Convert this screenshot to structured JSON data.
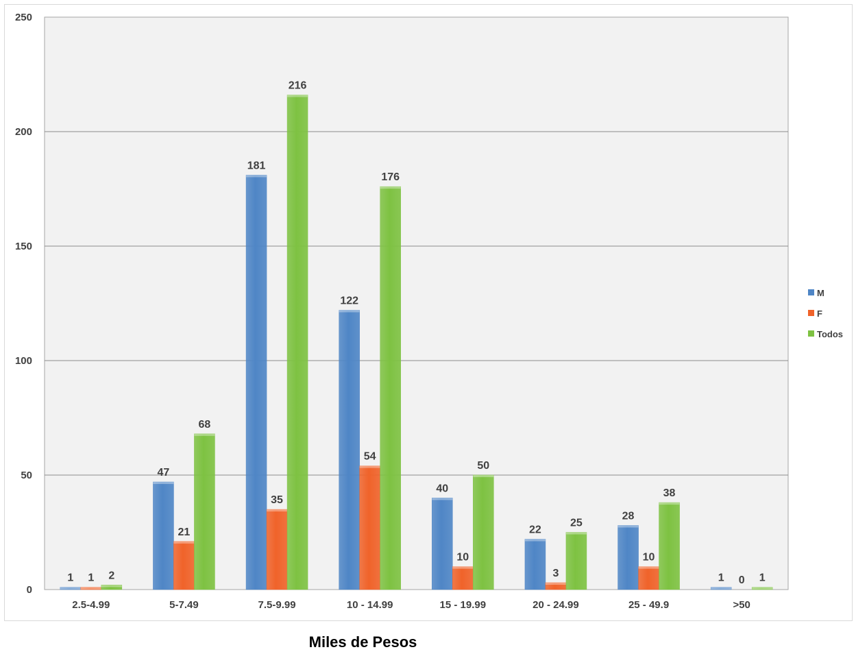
{
  "chart_data": {
    "type": "bar",
    "xlabel": "Miles de Pesos",
    "ylabel": "",
    "ylim": [
      0,
      250
    ],
    "yticks": [
      0,
      50,
      100,
      150,
      200,
      250
    ],
    "grid": true,
    "legend_position": "right",
    "categories": [
      "2.5-4.99",
      "5-7.49",
      "7.5-9.99",
      "10 - 14.99",
      "15 - 19.99",
      "20 - 24.99",
      "25 - 49.9",
      ">50"
    ],
    "series": [
      {
        "name": "M",
        "color": "#4f86c6",
        "values": [
          1,
          47,
          181,
          122,
          40,
          22,
          28,
          1
        ]
      },
      {
        "name": "F",
        "color": "#f0632a",
        "values": [
          1,
          21,
          35,
          54,
          10,
          3,
          10,
          0
        ]
      },
      {
        "name": "Todos",
        "color": "#7ec242",
        "values": [
          2,
          68,
          216,
          176,
          50,
          25,
          38,
          1
        ]
      }
    ]
  }
}
